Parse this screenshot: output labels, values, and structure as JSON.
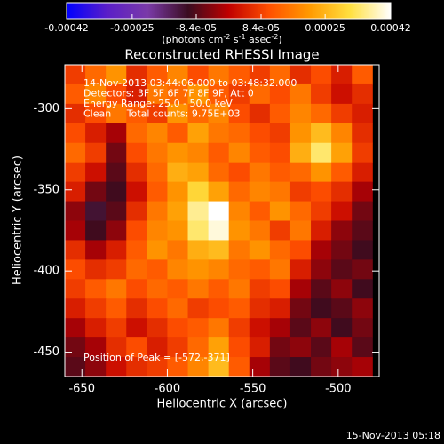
{
  "chart_data": {
    "type": "heatmap",
    "title": "Reconstructed RHESSI Image",
    "x_label": "Heliocentric X (arcsec)",
    "y_label": "Heliocentric Y (arcsec)",
    "annotations": [
      "14-Nov-2013 03:44:06.000 to 03:48:32.000",
      "Detectors: 3F 5F 6F 7F 8F 9F, Att 0",
      "Energy Range: 25.0 - 50.0 keV",
      "Clean     Total counts: 9.75E+03"
    ],
    "peak_label": "Position of Peak = [-572,-371]",
    "footer": "15-Nov-2013 05:18",
    "colorbar_label": [
      "(photons cm",
      "-2",
      " s",
      "-1",
      " asec",
      "-2",
      ")"
    ],
    "colorbar_lim": [
      -0.00042,
      0.00042
    ],
    "colorbar_ticks": [
      -0.00042,
      -0.00025,
      {
        "value": -8.4e-05,
        "label": "-8.4e-05"
      },
      {
        "value": 8.4e-05,
        "label": "8.4e-05"
      },
      0.00025,
      0.00042
    ],
    "colormap": [
      "#0000ff",
      "#5a1ec8",
      "#7a3aa8",
      "#3a0c20",
      "#c00000",
      "#ff5000",
      "#ff9a00",
      "#ffe040",
      "#ffffff"
    ],
    "xlim": [
      -660,
      -476
    ],
    "ylim": [
      -465,
      -273
    ],
    "xticks": [
      -650,
      -600,
      -550,
      -500
    ],
    "yticks": [
      -300,
      -350,
      -400,
      -450
    ],
    "x": [
      -654,
      -642,
      -630,
      -618,
      -606,
      -594,
      -582,
      -570,
      -558,
      -546,
      -534,
      -522,
      -510,
      -498,
      -486
    ],
    "y": [
      -279,
      -291,
      -303,
      -315,
      -327,
      -339,
      -351,
      -363,
      -375,
      -387,
      -399,
      -411,
      -423,
      -435,
      -447,
      -459
    ],
    "z": [
      [
        8e-05,
        0.00014,
        0.0002,
        6e-05,
        0.00012,
        0.00018,
        0.0001,
        0.00016,
        0.00012,
        8e-05,
        0.00014,
        6e-05,
        0.0001,
        4e-05,
        0.00012
      ],
      [
        0.00012,
        0.00018,
        0.0001,
        4e-05,
        0.00016,
        0.00014,
        0.0002,
        0.00012,
        8e-05,
        0.00014,
        0.0001,
        0.00016,
        8e-05,
        2e-05,
        6e-05
      ],
      [
        6e-05,
        0.0001,
        0.00016,
        0.00012,
        8e-05,
        0.0002,
        0.00014,
        0.00018,
        0.0001,
        6e-05,
        0.00012,
        0.00018,
        0.00014,
        8e-05,
        4e-05
      ],
      [
        0.0001,
        4e-05,
        -2e-05,
        0.00014,
        0.00018,
        0.00012,
        0.00022,
        0.00016,
        0.00014,
        0.0001,
        8e-05,
        0.0002,
        0.00026,
        0.00018,
        6e-05
      ],
      [
        0.00014,
        8e-05,
        -6e-05,
        0.0001,
        0.00016,
        0.0002,
        0.00018,
        0.00012,
        0.00018,
        0.00012,
        0.0001,
        0.00024,
        0.00034,
        0.00022,
        8e-05
      ],
      [
        8e-05,
        2e-05,
        -8e-05,
        6e-05,
        0.00014,
        0.00024,
        0.00022,
        0.00014,
        0.0001,
        0.00016,
        0.00012,
        0.00014,
        0.0002,
        0.00012,
        4e-05
      ],
      [
        4e-05,
        -6e-05,
        -0.0001,
        2e-05,
        0.00012,
        0.0002,
        0.0003,
        0.00022,
        0.00014,
        0.00018,
        0.00016,
        8e-05,
        0.0001,
        6e-05,
        -2e-05
      ],
      [
        -4e-05,
        -0.00012,
        -8e-05,
        6e-05,
        0.00016,
        0.00022,
        0.00036,
        0.00042,
        0.00018,
        0.00012,
        0.0002,
        0.00014,
        8e-05,
        2e-05,
        -6e-05
      ],
      [
        -2e-05,
        -0.0001,
        -4e-05,
        0.0001,
        0.00018,
        0.0002,
        0.00034,
        0.0004,
        0.0002,
        0.00016,
        8e-05,
        0.00016,
        4e-05,
        -4e-05,
        -8e-05
      ],
      [
        6e-05,
        -2e-05,
        4e-05,
        0.00012,
        0.0002,
        0.00016,
        0.00024,
        0.00026,
        0.00016,
        0.0002,
        0.00014,
        0.0001,
        -2e-05,
        -6e-05,
        -0.0001
      ],
      [
        0.0001,
        6e-05,
        8e-05,
        0.00014,
        0.00012,
        0.00018,
        0.0002,
        0.00018,
        0.00014,
        0.00012,
        0.00016,
        4e-05,
        -4e-05,
        -8e-05,
        -6e-05
      ],
      [
        8e-05,
        0.00012,
        0.00016,
        0.0001,
        0.00014,
        0.00012,
        0.00016,
        0.00012,
        0.00016,
        8e-05,
        0.0001,
        -2e-05,
        -8e-05,
        -4e-05,
        -0.0001
      ],
      [
        4e-05,
        8e-05,
        0.00012,
        6e-05,
        0.0001,
        0.00014,
        8e-05,
        0.0001,
        0.00012,
        6e-05,
        4e-05,
        -6e-05,
        -0.0001,
        -8e-05,
        -4e-05
      ],
      [
        -2e-05,
        4e-05,
        8e-05,
        2e-05,
        6e-05,
        0.0001,
        0.00012,
        0.00016,
        8e-05,
        2e-05,
        -2e-05,
        -8e-05,
        -4e-05,
        -0.0001,
        -6e-05
      ],
      [
        -6e-05,
        -2e-05,
        6e-05,
        0.0001,
        4e-05,
        8e-05,
        0.00014,
        0.00022,
        0.0001,
        4e-05,
        -6e-05,
        -4e-05,
        -8e-05,
        -2e-05,
        -8e-05
      ],
      [
        -8e-05,
        -4e-05,
        2e-05,
        6e-05,
        8e-05,
        0.00012,
        0.00018,
        0.00026,
        0.00012,
        -2e-05,
        -8e-05,
        -0.0001,
        -6e-05,
        -4e-05,
        -2e-05
      ]
    ]
  }
}
